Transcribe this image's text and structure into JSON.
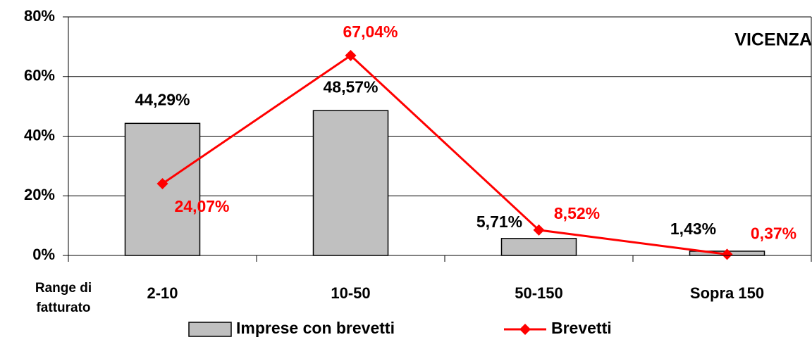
{
  "chart_data": {
    "type": "bar",
    "annotation": "VICENZA",
    "xlabel": [
      "Range di",
      "fatturato"
    ],
    "categories": [
      "2-10",
      "10-50",
      "50-150",
      "Sopra 150"
    ],
    "series": [
      {
        "name": "Imprese con brevetti",
        "type": "bar",
        "color": "#c0c0c0",
        "values": [
          44.29,
          48.57,
          5.71,
          1.43
        ],
        "value_labels": [
          "44,29%",
          "48,57%",
          "5,71%",
          "1,43%"
        ]
      },
      {
        "name": "Brevetti",
        "type": "line",
        "color": "#ff0000",
        "values": [
          24.07,
          67.04,
          8.52,
          0.37
        ],
        "value_labels": [
          "24,07%",
          "67,04%",
          "8,52%",
          "0,37%"
        ]
      }
    ],
    "ylim": [
      0,
      80
    ],
    "yticks": [
      {
        "value": 0,
        "label": "0%"
      },
      {
        "value": 20,
        "label": "20%"
      },
      {
        "value": 40,
        "label": "40%"
      },
      {
        "value": 60,
        "label": "60%"
      },
      {
        "value": 80,
        "label": "80%"
      }
    ],
    "grid": true,
    "legend": "bottom"
  }
}
